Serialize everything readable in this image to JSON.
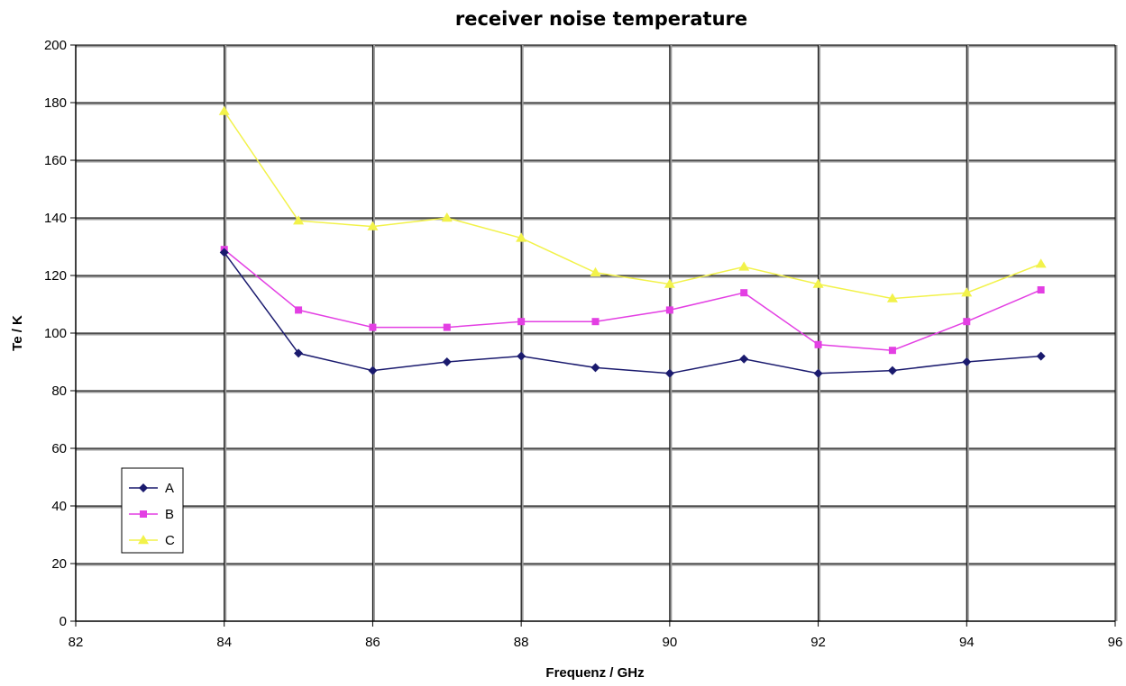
{
  "chart_data": {
    "type": "line",
    "title": "receiver noise temperature",
    "xlabel": "Frequenz / GHz",
    "ylabel": "Te / K",
    "xlim": [
      82,
      96
    ],
    "ylim": [
      0,
      200
    ],
    "xticks": [
      82,
      84,
      86,
      88,
      90,
      92,
      94,
      96
    ],
    "yticks": [
      0,
      20,
      40,
      60,
      80,
      100,
      120,
      140,
      160,
      180,
      200
    ],
    "grid": true,
    "legend_position": "bottom-left",
    "x": [
      84,
      85,
      86,
      87,
      88,
      89,
      90,
      91,
      92,
      93,
      94,
      95
    ],
    "series": [
      {
        "name": "A",
        "color": "#1a1a6e",
        "marker": "diamond",
        "values": [
          128,
          93,
          87,
          90,
          92,
          88,
          86,
          91,
          86,
          87,
          90,
          92
        ]
      },
      {
        "name": "B",
        "color": "#e33fe3",
        "marker": "square",
        "values": [
          129,
          108,
          102,
          102,
          104,
          104,
          108,
          114,
          96,
          94,
          104,
          115
        ]
      },
      {
        "name": "C",
        "color": "#f2f24a",
        "marker": "triangle",
        "values": [
          177,
          139,
          137,
          140,
          133,
          121,
          117,
          123,
          117,
          112,
          114,
          124
        ]
      }
    ]
  }
}
